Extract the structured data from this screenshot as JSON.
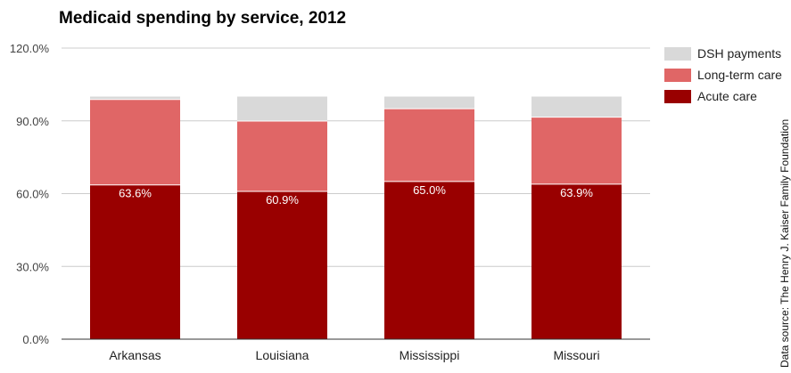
{
  "chart_data": {
    "type": "bar",
    "stacked": true,
    "title": "Medicaid spending by service, 2012",
    "source": "Data source: The Henry J. Kaiser Family Foundation",
    "categories": [
      "Arkansas",
      "Louisiana",
      "Mississippi",
      "Missouri"
    ],
    "series": [
      {
        "name": "Acute care",
        "color": "#990000",
        "values": [
          63.6,
          60.9,
          65.0,
          63.9
        ],
        "labels": [
          "63.6%",
          "60.9%",
          "65.0%",
          "63.9%"
        ]
      },
      {
        "name": "Long-term care",
        "color": "#e06666",
        "values": [
          35.2,
          29.0,
          30.0,
          27.6
        ]
      },
      {
        "name": "DSH payments",
        "color": "#d9d9d9",
        "values": [
          1.2,
          10.1,
          5.0,
          8.5
        ]
      }
    ],
    "legend_order": [
      "DSH payments",
      "Long-term care",
      "Acute care"
    ],
    "legend_position": "right",
    "ylim": [
      0,
      120
    ],
    "yticks": [
      0,
      30,
      60,
      90,
      120
    ],
    "ytick_labels": [
      "0.0%",
      "30.0%",
      "60.0%",
      "90.0%",
      "120.0%"
    ],
    "grid": true,
    "xlabel": "",
    "ylabel": ""
  }
}
